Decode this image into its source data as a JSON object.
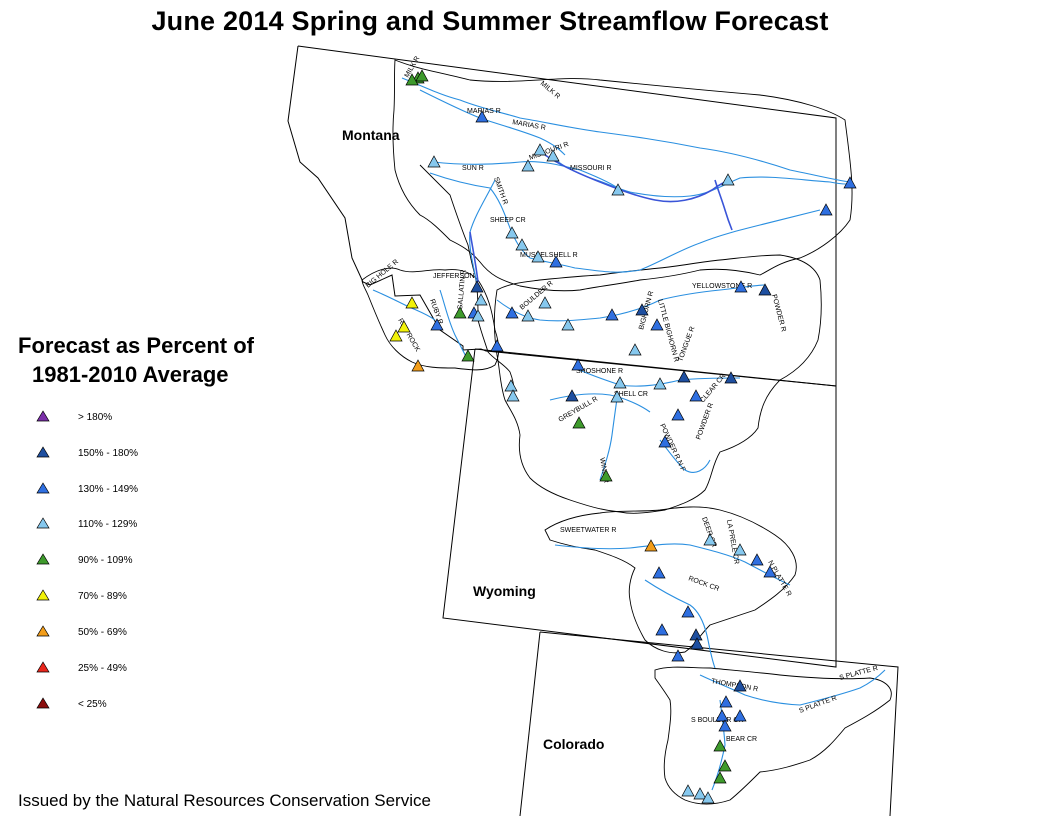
{
  "title": "June 2014 Spring and Summer Streamflow Forecast",
  "legend": {
    "title_line1": "Forecast as Percent of",
    "title_line2": "1981-2010 Average",
    "items": [
      {
        "label": "> 180%",
        "color": "#7b2fa8"
      },
      {
        "label": "150% - 180%",
        "color": "#1e4fa0"
      },
      {
        "label": "130% - 149%",
        "color": "#2f6fe0"
      },
      {
        "label": "110% - 129%",
        "color": "#86c8ee"
      },
      {
        "label": "90% - 109%",
        "color": "#3e9a2c"
      },
      {
        "label": "70% - 89%",
        "color": "#f2f20a"
      },
      {
        "label": "50% - 69%",
        "color": "#f29d1a"
      },
      {
        "label": "25% - 49%",
        "color": "#e8261c"
      },
      {
        "label": "< 25%",
        "color": "#8a0d0d"
      }
    ]
  },
  "states": {
    "montana": "Montana",
    "wyoming": "Wyoming",
    "colorado": "Colorado"
  },
  "rivers": [
    "MILK R",
    "MARIAS R",
    "MARIAS R",
    "MILK R",
    "MISSOURI R",
    "SUN R",
    "MISSOURI R",
    "SMITH R",
    "SHEEP CR",
    "MUSSELSHELL R",
    "JEFFERSON",
    "BIG HOLE R",
    "RUBY R",
    "RED ROCK",
    "GALLATIN R",
    "BOULDER R",
    "BIGHORN R",
    "LITTLE BIGHORN R",
    "TONGUE R",
    "YELLOWSTONE R",
    "POWDER R",
    "SHOSHONE R",
    "GREYBULL R",
    "SHELL CR",
    "CLEAR CR",
    "POWDER R",
    "POWDER R N F",
    "WIND R",
    "SWEETWATER R",
    "DEER CR",
    "LA PRELE CR",
    "N PLATTE R",
    "ROCK CR",
    "THOMPSON R",
    "S PLATTE R",
    "S PLATTE R",
    "S BOULDER CR",
    "BEAR CR"
  ],
  "footer": "Issued by the Natural Resources Conservation Service"
}
